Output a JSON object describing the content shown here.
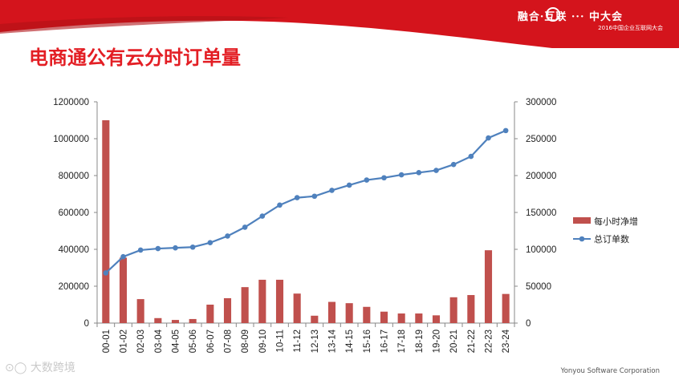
{
  "slide": {
    "title": "电商通公有云分时订单量",
    "brand_logo": "融合·互联 ··· 中大会",
    "brand_subtitle": "2016中国企业互联网大会",
    "watermark": "大数跨境",
    "footer_company": "Yonyou Software Corporation"
  },
  "colors": {
    "header_red": "#d4141c",
    "title_red": "#e31e24",
    "bar": "#c0504d",
    "line": "#4f81bd"
  },
  "chart_data": {
    "type": "bar+line",
    "categories": [
      "00-01",
      "01-02",
      "02-03",
      "03-04",
      "04-05",
      "05-06",
      "06-07",
      "07-08",
      "08-09",
      "09-10",
      "10-11",
      "11-12",
      "12-13",
      "13-14",
      "14-15",
      "15-16",
      "16-17",
      "17-18",
      "18-19",
      "19-20",
      "20-21",
      "21-22",
      "22-23",
      "23-24"
    ],
    "series": [
      {
        "name": "每小时净增",
        "kind": "bar",
        "axis": "left",
        "values": [
          1100000,
          355000,
          130000,
          27000,
          17000,
          22000,
          100000,
          135000,
          195000,
          235000,
          235000,
          160000,
          40000,
          115000,
          108000,
          88000,
          62000,
          52000,
          52000,
          42000,
          140000,
          152000,
          395000,
          158000
        ]
      },
      {
        "name": "总订单数",
        "kind": "line",
        "axis": "right",
        "values": [
          68000,
          90000,
          99000,
          101000,
          102000,
          103000,
          109000,
          118000,
          130000,
          145000,
          160000,
          170000,
          172000,
          180000,
          187000,
          194000,
          197000,
          201000,
          204000,
          207000,
          215000,
          226000,
          251000,
          261000
        ]
      }
    ],
    "y_left": {
      "min": 0,
      "max": 1200000,
      "ticks": [
        "0",
        "200000",
        "400000",
        "600000",
        "800000",
        "1000000",
        "1200000"
      ]
    },
    "y_right": {
      "min": 0,
      "max": 300000,
      "ticks": [
        "0",
        "50000",
        "100000",
        "150000",
        "200000",
        "250000",
        "300000"
      ]
    },
    "legend_position": "right",
    "grid": false
  }
}
